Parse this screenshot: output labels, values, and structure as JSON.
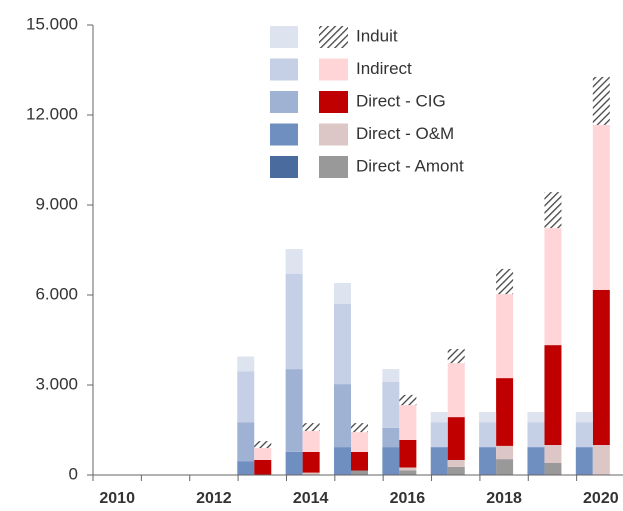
{
  "chart_data": {
    "type": "stacked_bar_pair",
    "categories": [
      "2010",
      null,
      "2012",
      null,
      "2014",
      null,
      "2016",
      null,
      "2018",
      null,
      "2020"
    ],
    "ylim": [
      0,
      15000
    ],
    "yticks": [
      0,
      {
        "value": 3000,
        "label": "3.000"
      },
      {
        "value": 6000,
        "label": "6.000"
      },
      {
        "value": 9000,
        "label": "9.000"
      },
      {
        "value": 12000,
        "label": "12.000"
      },
      {
        "value": 15000,
        "label": "15.000"
      }
    ],
    "series": [
      {
        "name": "Direct - Amont",
        "color": "#4a6b9e",
        "values": [
          0,
          0,
          0,
          0,
          0,
          0,
          0,
          0,
          0,
          0,
          0
        ],
        "color2": "#999999",
        "values2": [
          0,
          0,
          0,
          0,
          0,
          150,
          150,
          270,
          530,
          400,
          0
        ]
      },
      {
        "name": "Direct - O&M",
        "color": "#6f8fc0",
        "values": [
          0,
          0,
          0,
          450,
          770,
          930,
          930,
          930,
          930,
          930,
          930
        ],
        "color2": "#dcc6c6",
        "values2": [
          0,
          0,
          0,
          0,
          80,
          0,
          100,
          230,
          440,
          600,
          1000
        ]
      },
      {
        "name": "Direct - CIG",
        "color": "#9fb2d4",
        "values": [
          0,
          0,
          0,
          1300,
          2760,
          2100,
          640,
          0,
          0,
          0,
          0
        ],
        "color2": "#c00000",
        "values2": [
          0,
          0,
          0,
          500,
          690,
          620,
          920,
          1430,
          2260,
          3330,
          5170
        ]
      },
      {
        "name": "Indirect",
        "color": "#c5d0e6",
        "values": [
          0,
          0,
          0,
          1700,
          3170,
          2670,
          1530,
          830,
          830,
          830,
          830
        ],
        "color2": "#ffd5d8",
        "values2": [
          0,
          0,
          0,
          400,
          700,
          660,
          1160,
          1800,
          2800,
          3900,
          5500
        ]
      },
      {
        "name": "Induit",
        "color": "#dde3ef",
        "values": [
          0,
          0,
          0,
          500,
          830,
          700,
          430,
          340,
          340,
          340,
          340
        ],
        "color2": "hatch",
        "values2": [
          0,
          0,
          0,
          230,
          260,
          300,
          340,
          470,
          840,
          1200,
          1600
        ]
      }
    ]
  }
}
